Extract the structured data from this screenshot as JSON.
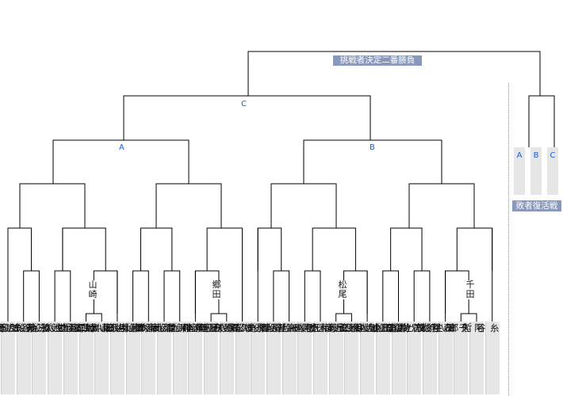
{
  "final": {
    "label": "挑戦者決定二番勝負"
  },
  "groups": {
    "c": "C",
    "a": "A",
    "b": "B"
  },
  "block_names": [
    "山崎",
    "郷田",
    "松尾",
    "千田"
  ],
  "revival": {
    "title": "敗者復活戦",
    "labels": [
      "A",
      "B",
      "C"
    ]
  },
  "players": [
    "広瀬章人八段",
    "谷合廣紀四段",
    "三浦弘行九段",
    "池永天志五段",
    "羽生善治九段",
    "丸山忠久九段",
    "山崎隆之八段",
    "佐藤康光九段",
    "藤井聡太二冠",
    "斎藤明日斗四段",
    "斎藤慎太郎八段",
    "深浦康市九段",
    "瀬川晶司六段",
    "屋敷伸之九段",
    "郷田真隆九段",
    "久保利明九段",
    "永瀬拓矢王座",
    "稲葉 陽八段",
    "高野智史五段",
    "阿部 隆九段",
    "木村一基九段",
    "近藤誠也七段",
    "松尾 歩八段",
    "佐藤天彦九段",
    "豊島将之竜王",
    "冨田誠也四段",
    "菅井竜也八段",
    "行方尚史九段",
    "森内俊之九段",
    "千田翔太七段",
    "阿久津主税八段",
    "糸谷哲郎八段"
  ]
}
